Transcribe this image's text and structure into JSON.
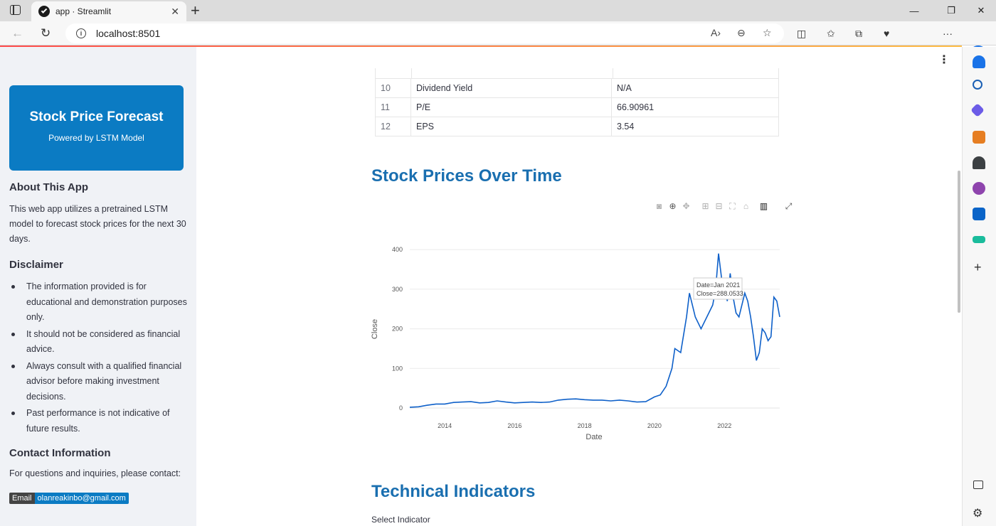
{
  "browser": {
    "tab_title": "app · Streamlit",
    "url": "localhost:8501"
  },
  "sidebar": {
    "banner_title": "Stock Price Forecast",
    "banner_subtitle": "Powered by LSTM Model",
    "about_heading": "About This App",
    "about_text": "This web app utilizes a pretrained LSTM model to forecast stock prices for the next 30 days.",
    "disclaimer_heading": "Disclaimer",
    "disclaimer_items": [
      "The information provided is for educational and demonstration purposes only.",
      "It should not be considered as financial advice.",
      "Always consult with a qualified financial advisor before making investment decisions.",
      "Past performance is not indicative of future results."
    ],
    "contact_heading": "Contact Information",
    "contact_text": "For questions and inquiries, please contact:",
    "email_label": "Email",
    "email_value": "olanreakinbo@gmail.com"
  },
  "info_table": {
    "rows": [
      {
        "index": "10",
        "key": "Dividend Yield",
        "value": "N/A"
      },
      {
        "index": "11",
        "key": "P/E",
        "value": "66.90961"
      },
      {
        "index": "12",
        "key": "EPS",
        "value": "3.54"
      }
    ]
  },
  "main": {
    "chart_heading": "Stock Prices Over Time",
    "indicators_heading": "Technical Indicators",
    "select_label": "Select Indicator"
  },
  "chart_data": {
    "type": "line",
    "title": "",
    "xlabel": "Date",
    "ylabel": "Close",
    "x_ticks": [
      "2014",
      "2016",
      "2018",
      "2020",
      "2022"
    ],
    "y_ticks": [
      0,
      100,
      200,
      300,
      400
    ],
    "ylim": [
      0,
      420
    ],
    "xlim": [
      "2013-01",
      "2023-08"
    ],
    "color": "#0e60c9",
    "grid": true,
    "tooltip": {
      "line1": "Date=Jan 2021",
      "line2": "Close=288.0533"
    },
    "series": [
      {
        "x": [
          "2013-01",
          "2013-04",
          "2013-07",
          "2013-10",
          "2014-01",
          "2014-04",
          "2014-07",
          "2014-10",
          "2015-01",
          "2015-04",
          "2015-07",
          "2015-10",
          "2016-01",
          "2016-04",
          "2016-07",
          "2016-10",
          "2017-01",
          "2017-04",
          "2017-07",
          "2017-10",
          "2018-01",
          "2018-04",
          "2018-07",
          "2018-10",
          "2019-01",
          "2019-04",
          "2019-07",
          "2019-10",
          "2020-01",
          "2020-03",
          "2020-05",
          "2020-07",
          "2020-08",
          "2020-10",
          "2020-12",
          "2021-01",
          "2021-02",
          "2021-03",
          "2021-05",
          "2021-07",
          "2021-09",
          "2021-10",
          "2021-11",
          "2021-12",
          "2022-01",
          "2022-02",
          "2022-03",
          "2022-04",
          "2022-05",
          "2022-06",
          "2022-08",
          "2022-09",
          "2022-10",
          "2022-11",
          "2022-12",
          "2023-01",
          "2023-02",
          "2023-03",
          "2023-04",
          "2023-05",
          "2023-06",
          "2023-07",
          "2023-08"
        ],
        "y": [
          2,
          3,
          7,
          10,
          10,
          14,
          15,
          16,
          13,
          14,
          18,
          15,
          13,
          14,
          15,
          14,
          15,
          20,
          22,
          23,
          21,
          20,
          20,
          18,
          20,
          18,
          15,
          16,
          28,
          33,
          55,
          100,
          150,
          140,
          230,
          290,
          260,
          230,
          200,
          230,
          260,
          300,
          390,
          330,
          310,
          270,
          340,
          280,
          240,
          230,
          290,
          270,
          230,
          180,
          120,
          140,
          200,
          190,
          170,
          180,
          280,
          270,
          230
        ]
      }
    ]
  }
}
